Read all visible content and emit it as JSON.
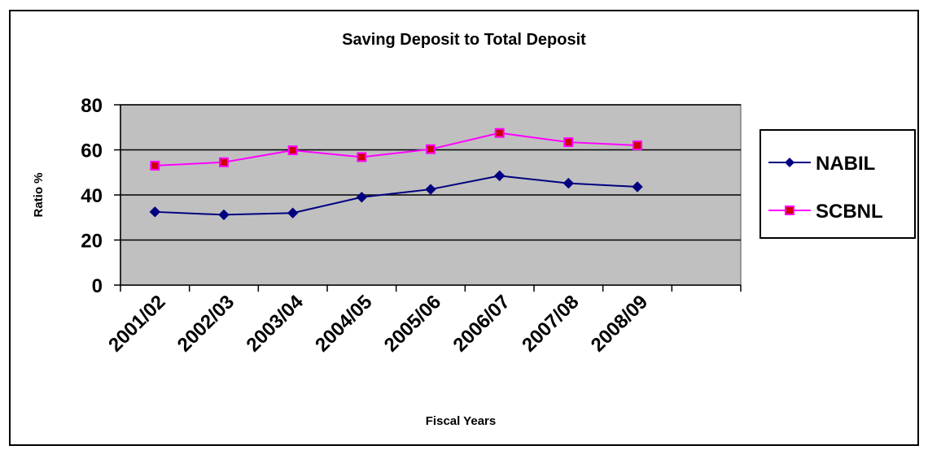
{
  "chart_data": {
    "type": "line",
    "title": "Saving Deposit to Total Deposit",
    "xlabel": "Fiscal Years",
    "ylabel": "Ratio %",
    "categories": [
      "2001/02",
      "2002/03",
      "2003/04",
      "2004/05",
      "2005/06",
      "2006/07",
      "2007/08",
      "2008/09"
    ],
    "ylim": [
      0,
      80
    ],
    "yticks": [
      "0",
      "20",
      "40",
      "60",
      "80"
    ],
    "grid": true,
    "legend_position": "right",
    "plot_background": "#c0c0c0",
    "series": [
      {
        "name": "NABIL",
        "color": "#000080",
        "marker": "diamond",
        "values": [
          32.5,
          31.2,
          32.0,
          39.0,
          42.5,
          48.5,
          45.2,
          43.6
        ]
      },
      {
        "name": "SCBNL",
        "color": "#ff00ff",
        "marker_fill": "#cc0000",
        "marker": "square",
        "values": [
          53.0,
          54.5,
          59.8,
          56.8,
          60.3,
          67.5,
          63.4,
          62.0
        ]
      }
    ]
  }
}
